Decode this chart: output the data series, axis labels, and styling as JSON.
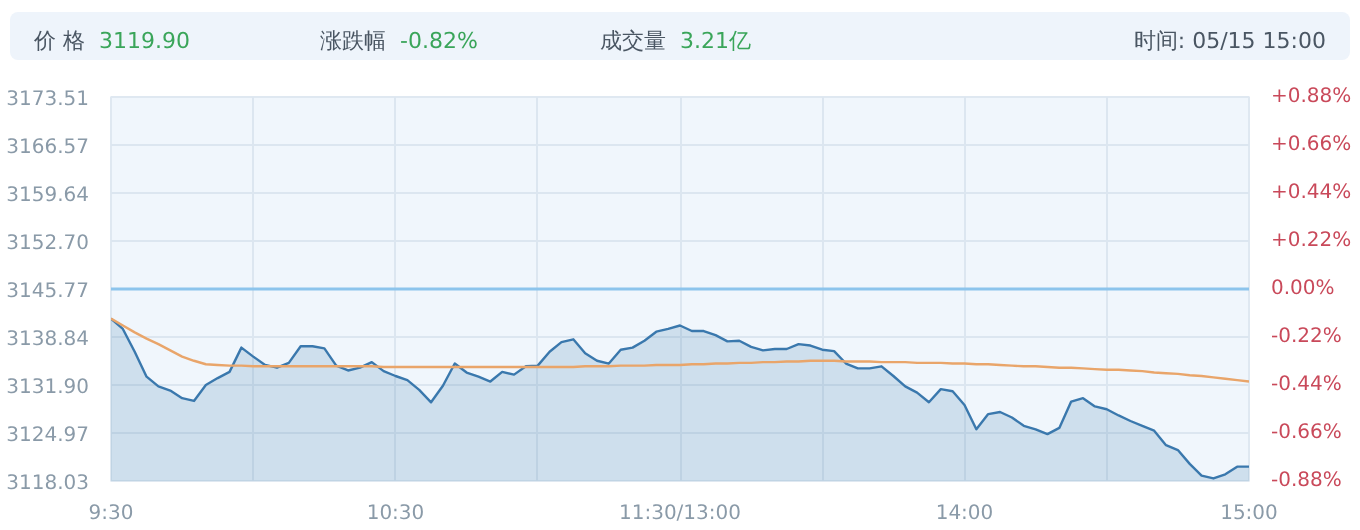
{
  "chart_data": {
    "type": "area",
    "annotations": [
      "价 格",
      "3119.90",
      "涨跌幅",
      "-0.82%",
      "成交量",
      "3.21亿",
      "时间: 05/15 15:00"
    ],
    "categories": [
      "9:30",
      null,
      null,
      null,
      null,
      null,
      null,
      null,
      null,
      null,
      null,
      null,
      null,
      null,
      null,
      null,
      null,
      null,
      null,
      null,
      null,
      null,
      null,
      null,
      "10:30",
      null,
      null,
      null,
      null,
      null,
      null,
      null,
      null,
      null,
      null,
      null,
      null,
      null,
      null,
      null,
      null,
      null,
      null,
      null,
      null,
      null,
      null,
      null,
      "11:30/13:00",
      null,
      null,
      null,
      null,
      null,
      null,
      null,
      null,
      null,
      null,
      null,
      null,
      null,
      null,
      null,
      null,
      null,
      null,
      null,
      null,
      null,
      null,
      null,
      "14:00",
      null,
      null,
      null,
      null,
      null,
      null,
      null,
      null,
      null,
      null,
      null,
      null,
      null,
      null,
      null,
      null,
      null,
      null,
      null,
      null,
      null,
      null,
      null,
      "15:00"
    ],
    "series": [
      {
        "color": "#3a78ad",
        "values": [
          3141.5,
          3140.0,
          3136.7,
          3133.1,
          3131.7,
          3131.1,
          3130.0,
          3129.6,
          3131.9,
          3132.9,
          3133.8,
          3137.3,
          3136.0,
          3134.8,
          3134.4,
          3135.1,
          3137.5,
          3137.5,
          3137.2,
          3134.7,
          3134.0,
          3134.4,
          3135.2,
          3133.9,
          3133.2,
          3132.6,
          3131.2,
          3129.4,
          3131.8,
          3135.0,
          3133.7,
          3133.1,
          3132.4,
          3133.8,
          3133.4,
          3134.6,
          3134.7,
          3136.7,
          3138.1,
          3138.5,
          3136.5,
          3135.4,
          3135.0,
          3137.0,
          3137.3,
          3138.3,
          3139.6,
          3140.0,
          3140.5,
          3139.7,
          3139.7,
          3139.1,
          3138.2,
          3138.3,
          3137.4,
          3136.9,
          3137.1,
          3137.1,
          3137.8,
          3137.6,
          3137.0,
          3136.8,
          3135.0,
          3134.3,
          3134.3,
          3134.6,
          3133.2,
          3131.7,
          3130.8,
          3129.4,
          3131.3,
          3131.0,
          3129.0,
          3125.5,
          3127.7,
          3128.0,
          3127.2,
          3126.0,
          3125.5,
          3124.8,
          3125.7,
          3129.5,
          3130.0,
          3128.8,
          3128.4,
          3127.5,
          3126.7,
          3126.0,
          3125.3,
          3123.2,
          3122.5,
          3120.5,
          3118.8,
          3118.4,
          3119.0,
          3120.1,
          3120.1
        ]
      },
      {
        "type": "line",
        "color": "#e9a56a",
        "values": [
          3141.5,
          3140.5,
          3139.5,
          3138.6,
          3137.8,
          3136.9,
          3136.0,
          3135.4,
          3134.9,
          3134.8,
          3134.7,
          3134.7,
          3134.6,
          3134.6,
          3134.6,
          3134.6,
          3134.6,
          3134.6,
          3134.6,
          3134.6,
          3134.6,
          3134.6,
          3134.6,
          3134.5,
          3134.5,
          3134.5,
          3134.5,
          3134.5,
          3134.5,
          3134.5,
          3134.5,
          3134.5,
          3134.5,
          3134.5,
          3134.5,
          3134.5,
          3134.5,
          3134.5,
          3134.5,
          3134.5,
          3134.6,
          3134.6,
          3134.6,
          3134.7,
          3134.7,
          3134.7,
          3134.8,
          3134.8,
          3134.8,
          3134.9,
          3134.9,
          3135.0,
          3135.0,
          3135.1,
          3135.1,
          3135.2,
          3135.2,
          3135.3,
          3135.3,
          3135.4,
          3135.4,
          3135.4,
          3135.3,
          3135.3,
          3135.3,
          3135.2,
          3135.2,
          3135.2,
          3135.1,
          3135.1,
          3135.1,
          3135.0,
          3135.0,
          3134.9,
          3134.9,
          3134.8,
          3134.7,
          3134.6,
          3134.6,
          3134.5,
          3134.4,
          3134.4,
          3134.3,
          3134.2,
          3134.1,
          3134.1,
          3134.0,
          3133.9,
          3133.7,
          3133.6,
          3133.5,
          3133.3,
          3133.2,
          3133.0,
          3132.8,
          3132.6,
          3132.4
        ]
      }
    ],
    "ylim": [
      3118.03,
      3173.51
    ],
    "yticks": [
      3118.03,
      3124.97,
      {
        "value": 3131.9,
        "label": "3131.90"
      },
      3138.84,
      3145.77,
      {
        "value": 3152.7,
        "label": "3152.70"
      },
      3159.64,
      3166.57,
      3173.51
    ],
    "y2lim": [
      -0.88,
      0.88
    ],
    "y2ticks": [
      {
        "value": -0.88,
        "label": "-0.88%"
      },
      {
        "value": -0.66,
        "label": "-0.66%"
      },
      {
        "value": -0.44,
        "label": "-0.44%"
      },
      {
        "value": -0.22,
        "label": "-0.22%"
      },
      {
        "value": 0,
        "label": "0.00%"
      },
      {
        "value": 0.22,
        "label": "+0.22%"
      },
      {
        "value": 0.44,
        "label": "+0.44%"
      },
      {
        "value": 0.66,
        "label": "+0.66%"
      },
      {
        "value": 0.88,
        "label": "+0.88%"
      }
    ],
    "ref_lines": [
      {
        "axis": "y",
        "value": 3145.77,
        "color": "#8cc4ec"
      }
    ],
    "grid": true
  }
}
